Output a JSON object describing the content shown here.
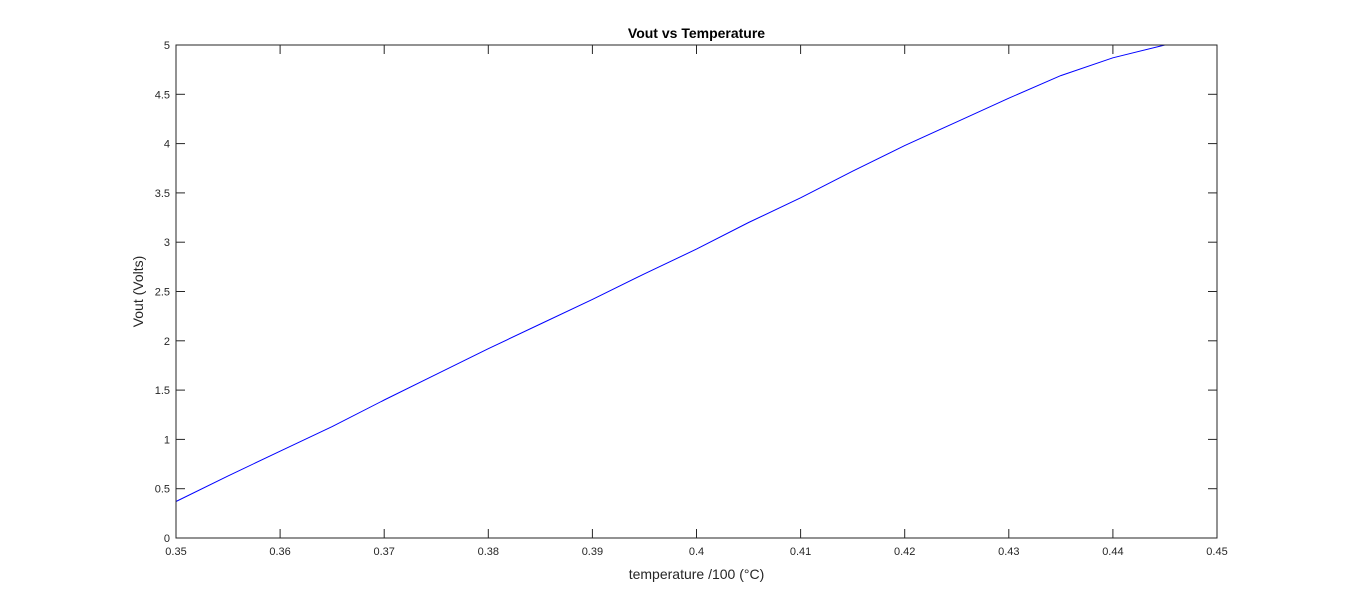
{
  "chart_data": {
    "type": "line",
    "title": "Vout vs Temperature",
    "xlabel": "temperature /100 (°C)",
    "ylabel": "Vout (Volts)",
    "xlim": [
      0.35,
      0.45
    ],
    "ylim": [
      0,
      5
    ],
    "xticks": [
      0.35,
      0.36,
      0.37,
      0.38,
      0.39,
      0.4,
      0.41,
      0.42,
      0.43,
      0.44,
      0.45
    ],
    "xtick_labels": [
      "0.35",
      "0.36",
      "0.37",
      "0.38",
      "0.39",
      "0.4",
      "0.41",
      "0.42",
      "0.43",
      "0.44",
      "0.45"
    ],
    "yticks": [
      0,
      0.5,
      1,
      1.5,
      2,
      2.5,
      3,
      3.5,
      4,
      4.5,
      5
    ],
    "ytick_labels": [
      "0",
      "0.5",
      "1",
      "1.5",
      "2",
      "2.5",
      "3",
      "3.5",
      "4",
      "4.5",
      "5"
    ],
    "grid": false,
    "colors": {
      "series": "#0000ff",
      "axes": "#262626"
    },
    "series": [
      {
        "x": [
          0.35,
          0.355,
          0.36,
          0.365,
          0.37,
          0.375,
          0.38,
          0.385,
          0.39,
          0.395,
          0.4,
          0.405,
          0.41,
          0.415,
          0.42,
          0.425,
          0.43,
          0.435,
          0.44,
          0.445
        ],
        "y": [
          0.37,
          0.63,
          0.88,
          1.13,
          1.4,
          1.66,
          1.92,
          2.17,
          2.42,
          2.68,
          2.93,
          3.2,
          3.45,
          3.72,
          3.98,
          4.22,
          4.46,
          4.69,
          4.87,
          5.0
        ]
      }
    ]
  }
}
